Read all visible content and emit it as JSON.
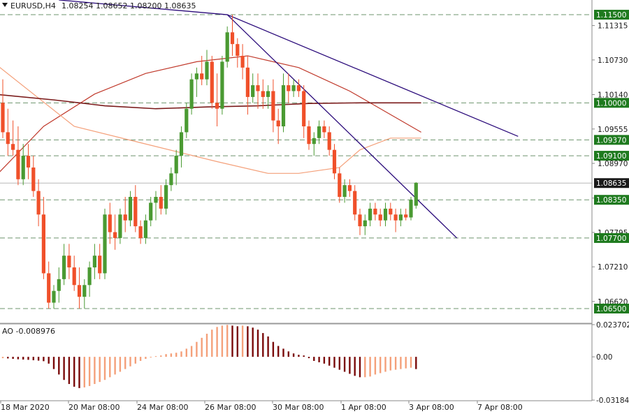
{
  "header": {
    "symbol": "EURUSD,H4",
    "ohlc": "1.08254 1.08652 1.08200 1.08635",
    "indicator_label": "AO -0.008976"
  },
  "colors": {
    "bull": "#4a9a32",
    "bear": "#f0502a",
    "grid": "#4a7a4a",
    "badge": "#1e7a1e",
    "badge_current": "#1a1a1a",
    "ma_fast": "#c0392b",
    "ma_mid": "#f4a07a",
    "ma_slow": "#7a1a1a",
    "trendline": "#2a0a7a",
    "ao_up": "#f4a07a",
    "ao_down": "#7a0a0a"
  },
  "chart_data": [
    {
      "type": "candlestick",
      "title": "EURUSD,H4",
      "ylim": [
        1.0625,
        1.1175
      ],
      "y_ticks": [
        "1.11315",
        "1.10730",
        "1.10140",
        "1.09555",
        "1.08970",
        "1.08380",
        "1.07795",
        "1.07210",
        "1.06620"
      ],
      "x_ticks": [
        "18 Mar 2020",
        "20 Mar 08:00",
        "24 Mar 08:00",
        "26 Mar 08:00",
        "30 Mar 08:00",
        "1 Apr 08:00",
        "3 Apr 08:00",
        "7 Apr 08:00"
      ],
      "levels": [
        "1.11500",
        "1.10000",
        "1.09370",
        "1.09100",
        "1.08350",
        "1.07700",
        "1.06500"
      ],
      "current_price": "1.08635",
      "candles": [
        [
          1.1,
          1.104,
          1.094,
          1.095
        ],
        [
          1.095,
          1.099,
          1.091,
          1.093
        ],
        [
          1.093,
          1.097,
          1.091,
          1.092
        ],
        [
          1.092,
          1.096,
          1.086,
          1.087
        ],
        [
          1.087,
          1.093,
          1.086,
          1.091
        ],
        [
          1.091,
          1.093,
          1.087,
          1.089
        ],
        [
          1.089,
          1.091,
          1.084,
          1.085
        ],
        [
          1.085,
          1.087,
          1.079,
          1.081
        ],
        [
          1.081,
          1.084,
          1.07,
          1.071
        ],
        [
          1.071,
          1.073,
          1.065,
          1.066
        ],
        [
          1.066,
          1.069,
          1.065,
          1.068
        ],
        [
          1.068,
          1.072,
          1.066,
          1.07
        ],
        [
          1.07,
          1.076,
          1.069,
          1.074
        ],
        [
          1.074,
          1.076,
          1.07,
          1.072
        ],
        [
          1.072,
          1.074,
          1.068,
          1.069
        ],
        [
          1.069,
          1.072,
          1.065,
          1.067
        ],
        [
          1.067,
          1.07,
          1.065,
          1.069
        ],
        [
          1.069,
          1.073,
          1.067,
          1.072
        ],
        [
          1.072,
          1.076,
          1.07,
          1.074
        ],
        [
          1.074,
          1.076,
          1.07,
          1.071
        ],
        [
          1.071,
          1.082,
          1.07,
          1.081
        ],
        [
          1.081,
          1.083,
          1.076,
          1.078
        ],
        [
          1.078,
          1.081,
          1.075,
          1.077
        ],
        [
          1.077,
          1.082,
          1.076,
          1.081
        ],
        [
          1.081,
          1.084,
          1.078,
          1.08
        ],
        [
          1.08,
          1.085,
          1.079,
          1.084
        ],
        [
          1.084,
          1.086,
          1.078,
          1.079
        ],
        [
          1.079,
          1.08,
          1.076,
          1.077
        ],
        [
          1.077,
          1.081,
          1.076,
          1.08
        ],
        [
          1.08,
          1.084,
          1.079,
          1.083
        ],
        [
          1.083,
          1.085,
          1.08,
          1.084
        ],
        [
          1.084,
          1.086,
          1.081,
          1.082
        ],
        [
          1.082,
          1.087,
          1.081,
          1.086
        ],
        [
          1.086,
          1.089,
          1.085,
          1.088
        ],
        [
          1.088,
          1.092,
          1.086,
          1.091
        ],
        [
          1.091,
          1.096,
          1.089,
          1.095
        ],
        [
          1.095,
          1.1,
          1.094,
          1.099
        ],
        [
          1.099,
          1.105,
          1.098,
          1.104
        ],
        [
          1.104,
          1.106,
          1.101,
          1.105
        ],
        [
          1.105,
          1.108,
          1.103,
          1.104
        ],
        [
          1.104,
          1.109,
          1.103,
          1.107
        ],
        [
          1.107,
          1.108,
          1.099,
          1.1
        ],
        [
          1.1,
          1.105,
          1.096,
          1.099
        ],
        [
          1.099,
          1.108,
          1.098,
          1.107
        ],
        [
          1.107,
          1.113,
          1.106,
          1.112
        ],
        [
          1.112,
          1.115,
          1.108,
          1.11
        ],
        [
          1.11,
          1.111,
          1.106,
          1.108
        ],
        [
          1.108,
          1.11,
          1.104,
          1.106
        ],
        [
          1.106,
          1.108,
          1.098,
          1.101
        ],
        [
          1.101,
          1.105,
          1.1,
          1.103
        ],
        [
          1.103,
          1.105,
          1.099,
          1.102
        ],
        [
          1.102,
          1.104,
          1.099,
          1.101
        ],
        [
          1.101,
          1.103,
          1.099,
          1.102
        ],
        [
          1.102,
          1.104,
          1.095,
          1.097
        ],
        [
          1.097,
          1.099,
          1.093,
          1.096
        ],
        [
          1.096,
          1.105,
          1.095,
          1.103
        ],
        [
          1.103,
          1.105,
          1.1,
          1.102
        ],
        [
          1.102,
          1.104,
          1.101,
          1.103
        ],
        [
          1.103,
          1.104,
          1.101,
          1.102
        ],
        [
          1.102,
          1.103,
          1.094,
          1.096
        ],
        [
          1.096,
          1.097,
          1.092,
          1.093
        ],
        [
          1.093,
          1.095,
          1.091,
          1.094
        ],
        [
          1.094,
          1.097,
          1.093,
          1.096
        ],
        [
          1.096,
          1.097,
          1.094,
          1.095
        ],
        [
          1.095,
          1.096,
          1.091,
          1.092
        ],
        [
          1.092,
          1.093,
          1.087,
          1.088
        ],
        [
          1.088,
          1.089,
          1.083,
          1.084
        ],
        [
          1.084,
          1.087,
          1.083,
          1.086
        ],
        [
          1.086,
          1.087,
          1.084,
          1.085
        ],
        [
          1.085,
          1.086,
          1.08,
          1.081
        ],
        [
          1.081,
          1.082,
          1.0775,
          1.079
        ],
        [
          1.079,
          1.081,
          1.0775,
          1.08
        ],
        [
          1.08,
          1.083,
          1.079,
          1.082
        ],
        [
          1.082,
          1.083,
          1.08,
          1.081
        ],
        [
          1.081,
          1.082,
          1.079,
          1.08
        ],
        [
          1.08,
          1.083,
          1.079,
          1.082
        ],
        [
          1.082,
          1.083,
          1.08,
          1.081
        ],
        [
          1.081,
          1.082,
          1.078,
          1.08
        ],
        [
          1.08,
          1.082,
          1.079,
          1.081
        ],
        [
          1.081,
          1.082,
          1.08,
          1.0805
        ],
        [
          1.0805,
          1.084,
          1.08,
          1.0835
        ],
        [
          1.0825,
          1.0865,
          1.082,
          1.0864
        ]
      ],
      "moving_averages": [
        {
          "points": [
            [
              -2,
              1.087
            ],
            [
              8,
              1.096
            ],
            [
              18,
              1.1015
            ],
            [
              28,
              1.105
            ],
            [
              38,
              1.107
            ],
            [
              48,
              1.108
            ],
            [
              58,
              1.106
            ],
            [
              68,
              1.102
            ],
            [
              76,
              1.098
            ],
            [
              82,
              1.095
            ]
          ]
        },
        {
          "points": [
            [
              -2,
              1.107
            ],
            [
              14,
              1.096
            ],
            [
              28,
              1.093
            ],
            [
              42,
              1.09
            ],
            [
              52,
              1.088
            ],
            [
              58,
              1.088
            ],
            [
              66,
              1.089
            ],
            [
              70,
              1.092
            ],
            [
              76,
              1.094
            ],
            [
              82,
              1.094
            ]
          ]
        },
        {
          "points": [
            [
              -2,
              1.1015
            ],
            [
              10,
              1.1005
            ],
            [
              20,
              1.0995
            ],
            [
              30,
              1.099
            ],
            [
              40,
              1.0993
            ],
            [
              50,
              1.0995
            ],
            [
              60,
              1.0999
            ],
            [
              70,
              1.1
            ],
            [
              82,
              1.1
            ]
          ]
        }
      ],
      "trendlines": [
        {
          "points": [
            [
              11,
              1.1175
            ],
            [
              44,
              1.115
            ],
            [
              101,
              1.0943
            ]
          ]
        },
        {
          "points": [
            [
              44,
              1.115
            ],
            [
              89,
              1.077
            ]
          ]
        }
      ]
    },
    {
      "type": "bar",
      "title": "AO -0.008976",
      "ylim": [
        -0.0318,
        0.0237
      ],
      "y_ticks": [
        "0.023702",
        "0.00",
        "-0.031846"
      ],
      "values": [
        -0.001,
        -0.0012,
        -0.0015,
        -0.0018,
        -0.002,
        -0.0022,
        -0.0025,
        -0.0028,
        -0.0032,
        -0.005,
        -0.009,
        -0.013,
        -0.017,
        -0.02,
        -0.022,
        -0.023,
        -0.0225,
        -0.0215,
        -0.02,
        -0.0185,
        -0.017,
        -0.015,
        -0.013,
        -0.011,
        -0.009,
        -0.007,
        -0.005,
        -0.003,
        -0.0015,
        -0.0005,
        0.0005,
        0.001,
        0.002,
        0.0025,
        0.003,
        0.004,
        0.006,
        0.008,
        0.011,
        0.014,
        0.017,
        0.02,
        0.022,
        0.023,
        0.0235,
        0.023,
        0.0225,
        0.023,
        0.0225,
        0.0215,
        0.02,
        0.0175,
        0.015,
        0.011,
        0.008,
        0.006,
        0.004,
        0.0025,
        0.0015,
        0.001,
        -0.001,
        -0.003,
        -0.004,
        -0.005,
        -0.0065,
        -0.008,
        -0.0095,
        -0.011,
        -0.0125,
        -0.014,
        -0.015,
        -0.015,
        -0.0145,
        -0.013,
        -0.012,
        -0.011,
        -0.01,
        -0.0095,
        -0.009,
        -0.0085,
        -0.008,
        -0.009
      ]
    }
  ]
}
